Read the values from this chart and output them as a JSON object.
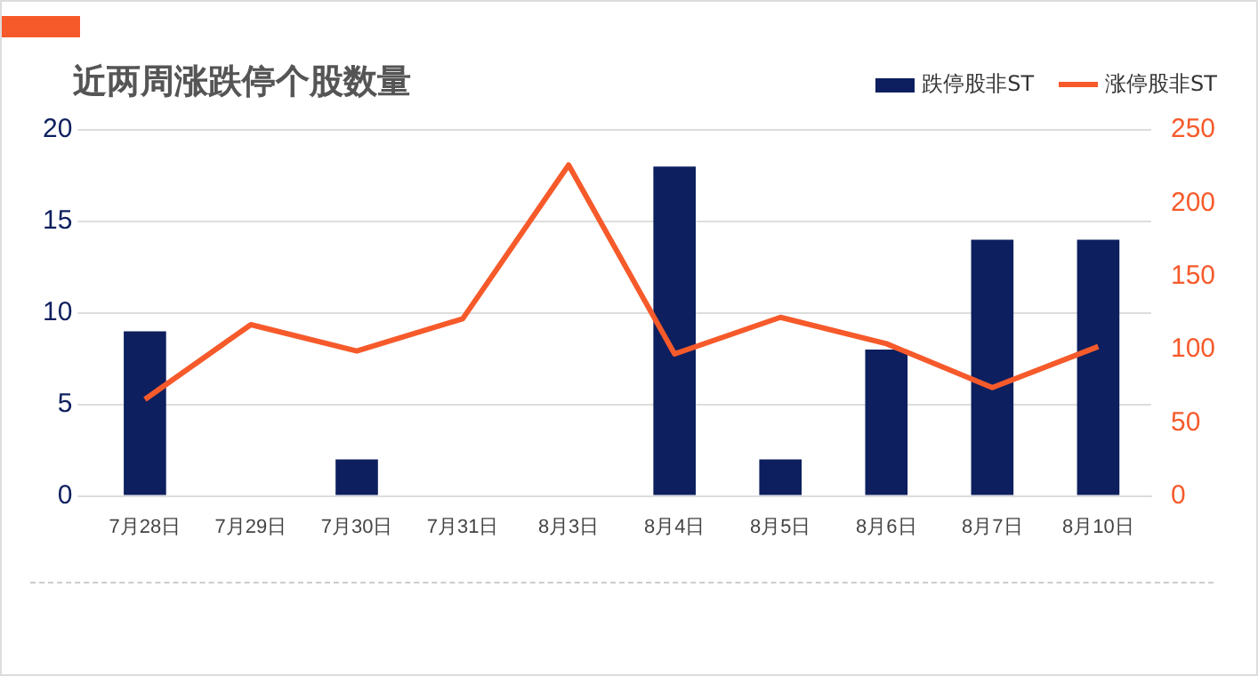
{
  "chart_data": {
    "type": "bar",
    "title": "近两周涨跌停个股数量",
    "categories": [
      "7月28日",
      "7月29日",
      "7月30日",
      "7月31日",
      "8月3日",
      "8月4日",
      "8月5日",
      "8月6日",
      "8月7日",
      "8月10日"
    ],
    "series": [
      {
        "name": "跌停股非ST",
        "color": "#0d1f5e",
        "values": [
          9,
          0,
          2,
          0,
          0,
          18,
          2,
          8,
          14,
          14
        ]
      },
      {
        "name": "涨停股非ST",
        "type": "line",
        "axis": "y2",
        "color": "#f65a2b",
        "values": [
          66,
          117,
          99,
          121,
          226,
          97,
          122,
          104,
          74,
          102
        ]
      }
    ],
    "ylim": [
      0,
      20
    ],
    "yticks": [
      0,
      5,
      10,
      15,
      20
    ],
    "y2lim": [
      0,
      250
    ],
    "y2ticks": [
      0,
      50,
      100,
      150,
      200,
      250
    ],
    "grid": "y",
    "legend": "top right",
    "marker": "none"
  }
}
